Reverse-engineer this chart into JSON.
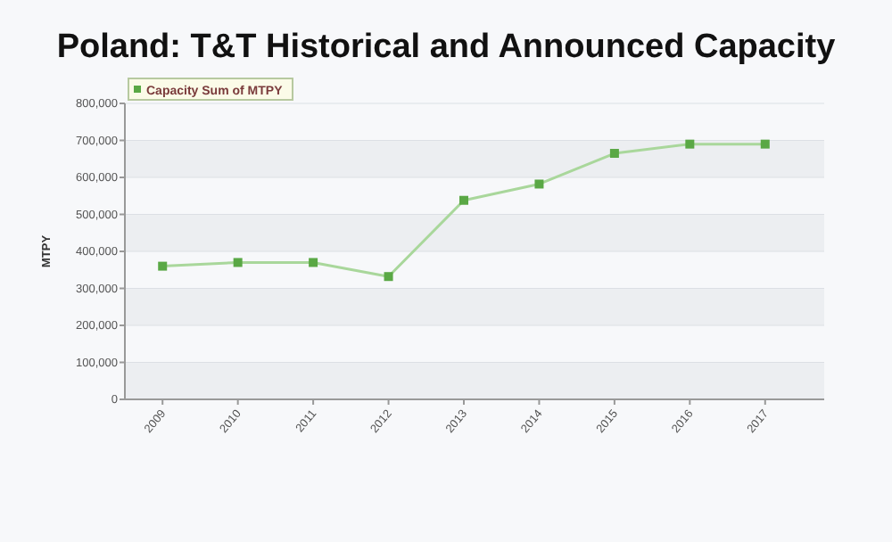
{
  "chart_data": {
    "type": "line",
    "title": "Poland: T&T Historical  and Announced Capacity",
    "ylabel": "MTPY",
    "categories": [
      "2009",
      "2010",
      "2011",
      "2012",
      "2013",
      "2014",
      "2015",
      "2016",
      "2017"
    ],
    "series": [
      {
        "name": "Capacity Sum of MTPY",
        "color": "#5aa845",
        "values": [
          360000,
          370000,
          370000,
          332000,
          538000,
          582000,
          665000,
          690000,
          690000
        ]
      }
    ],
    "ylim": [
      0,
      800000
    ],
    "yticks": [
      {
        "value": 0,
        "label": "0"
      },
      {
        "value": 100000,
        "label": "100,000"
      },
      {
        "value": 200000,
        "label": "200,000"
      },
      {
        "value": 300000,
        "label": "300,000"
      },
      {
        "value": 400000,
        "label": "400,000"
      },
      {
        "value": 500000,
        "label": "500,000"
      },
      {
        "value": 600000,
        "label": "600,000"
      },
      {
        "value": 700000,
        "label": "700,000"
      },
      {
        "value": 800000,
        "label": "800,000"
      }
    ],
    "grid": "y",
    "legend": "top left",
    "marker": "square",
    "line_style": "solid"
  }
}
